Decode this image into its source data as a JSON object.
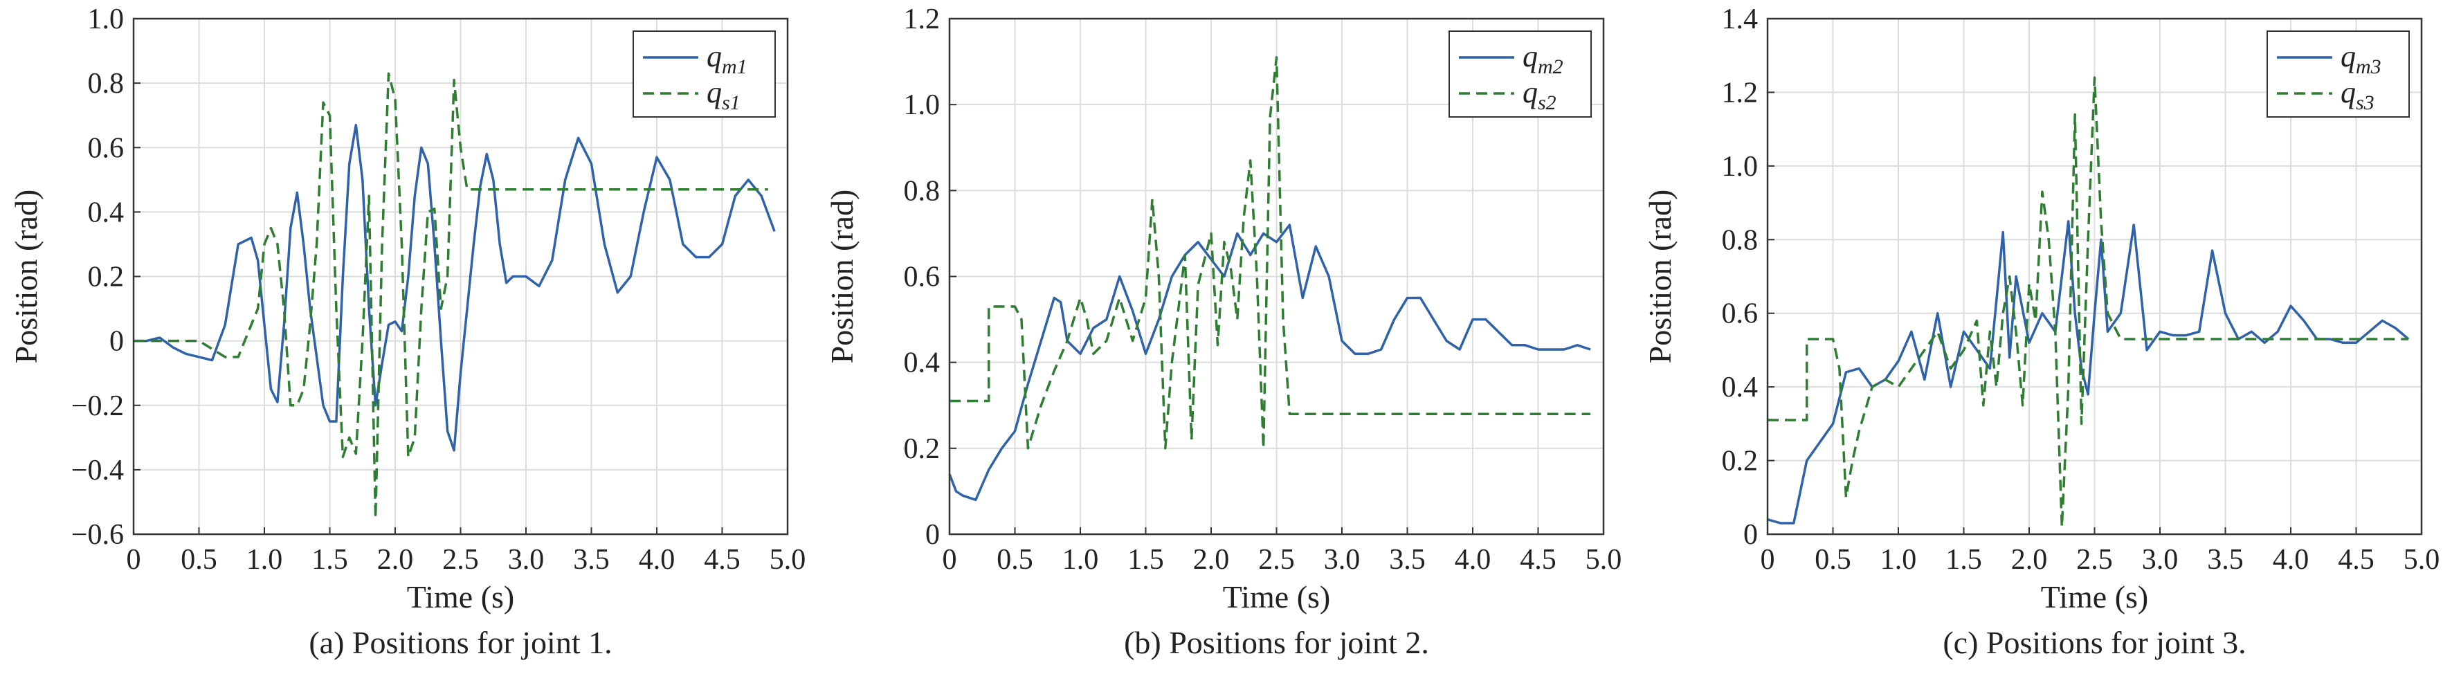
{
  "colors": {
    "master": "#2f62a8",
    "slave": "#2e7d32",
    "grid": "#dcdcdc",
    "axis": "#333333"
  },
  "chart_data": [
    {
      "type": "line",
      "caption": "(a) Positions for joint 1.",
      "xlabel": "Time (s)",
      "ylabel": "Position (rad)",
      "xlim": [
        0,
        5.0
      ],
      "ylim": [
        -0.6,
        1.0
      ],
      "xticks": [
        "0",
        "0.5",
        "1.0",
        "1.5",
        "2.0",
        "2.5",
        "3.0",
        "3.5",
        "4.0",
        "4.5",
        "5.0"
      ],
      "yticks": [
        "−0.6",
        "−0.4",
        "−0.2",
        "0",
        "0.2",
        "0.4",
        "0.6",
        "0.8",
        "1.0"
      ],
      "grid": true,
      "legend_position": "top-right",
      "series": [
        {
          "name": "q",
          "sub": "m1",
          "style": "solid",
          "color": "#2f62a8",
          "x": [
            0,
            0.1,
            0.2,
            0.3,
            0.4,
            0.5,
            0.6,
            0.7,
            0.8,
            0.9,
            0.95,
            1.0,
            1.05,
            1.1,
            1.15,
            1.2,
            1.25,
            1.3,
            1.35,
            1.4,
            1.45,
            1.5,
            1.55,
            1.6,
            1.65,
            1.7,
            1.75,
            1.8,
            1.85,
            1.9,
            1.95,
            2.0,
            2.05,
            2.1,
            2.15,
            2.2,
            2.25,
            2.3,
            2.35,
            2.4,
            2.45,
            2.5,
            2.55,
            2.6,
            2.65,
            2.7,
            2.75,
            2.8,
            2.85,
            2.9,
            3.0,
            3.1,
            3.2,
            3.3,
            3.4,
            3.5,
            3.6,
            3.7,
            3.8,
            3.9,
            4.0,
            4.1,
            4.2,
            4.3,
            4.4,
            4.5,
            4.6,
            4.7,
            4.8,
            4.9
          ],
          "y": [
            0,
            0,
            0.01,
            -0.02,
            -0.04,
            -0.05,
            -0.06,
            0.05,
            0.3,
            0.32,
            0.25,
            0.05,
            -0.15,
            -0.19,
            0.05,
            0.35,
            0.46,
            0.3,
            0.1,
            -0.05,
            -0.2,
            -0.25,
            -0.25,
            0.2,
            0.55,
            0.67,
            0.5,
            0.1,
            -0.2,
            -0.07,
            0.05,
            0.06,
            0.03,
            0.2,
            0.45,
            0.6,
            0.55,
            0.3,
            0.0,
            -0.28,
            -0.34,
            -0.1,
            0.1,
            0.3,
            0.48,
            0.58,
            0.5,
            0.3,
            0.18,
            0.2,
            0.2,
            0.17,
            0.25,
            0.5,
            0.63,
            0.55,
            0.3,
            0.15,
            0.2,
            0.4,
            0.57,
            0.5,
            0.3,
            0.26,
            0.26,
            0.3,
            0.45,
            0.5,
            0.45,
            0.34
          ]
        },
        {
          "name": "q",
          "sub": "s1",
          "style": "dashed",
          "color": "#2e7d32",
          "x": [
            0,
            0.5,
            0.7,
            0.8,
            0.85,
            0.9,
            0.95,
            1.0,
            1.05,
            1.1,
            1.15,
            1.2,
            1.25,
            1.3,
            1.35,
            1.4,
            1.45,
            1.5,
            1.55,
            1.6,
            1.65,
            1.7,
            1.75,
            1.8,
            1.85,
            1.9,
            1.95,
            2.0,
            2.05,
            2.1,
            2.15,
            2.2,
            2.25,
            2.3,
            2.35,
            2.4,
            2.45,
            2.5,
            2.55,
            2.6,
            2.65,
            2.7,
            3.0,
            4.0,
            4.85
          ],
          "y": [
            0,
            0,
            -0.05,
            -0.05,
            0.0,
            0.05,
            0.1,
            0.3,
            0.35,
            0.3,
            0.1,
            -0.2,
            -0.2,
            -0.15,
            0.05,
            0.3,
            0.74,
            0.7,
            0.1,
            -0.36,
            -0.3,
            -0.35,
            0.0,
            0.45,
            -0.55,
            0.3,
            0.83,
            0.75,
            0.3,
            -0.36,
            -0.3,
            0.1,
            0.4,
            0.41,
            0.1,
            0.2,
            0.81,
            0.6,
            0.47,
            0.47,
            0.47,
            0.47,
            0.47,
            0.47,
            0.47
          ]
        }
      ]
    },
    {
      "type": "line",
      "caption": "(b) Positions for joint 2.",
      "xlabel": "Time (s)",
      "ylabel": "Position (rad)",
      "xlim": [
        0,
        5.0
      ],
      "ylim": [
        0,
        1.2
      ],
      "xticks": [
        "0",
        "0.5",
        "1.0",
        "1.5",
        "2.0",
        "2.5",
        "3.0",
        "3.5",
        "4.0",
        "4.5",
        "5.0"
      ],
      "yticks": [
        "0",
        "0.2",
        "0.4",
        "0.6",
        "0.8",
        "1.0",
        "1.2"
      ],
      "grid": true,
      "legend_position": "top-right",
      "series": [
        {
          "name": "q",
          "sub": "m2",
          "style": "solid",
          "color": "#2f62a8",
          "x": [
            0,
            0.05,
            0.1,
            0.2,
            0.3,
            0.4,
            0.5,
            0.6,
            0.7,
            0.8,
            0.85,
            0.9,
            1.0,
            1.1,
            1.2,
            1.3,
            1.4,
            1.5,
            1.6,
            1.7,
            1.8,
            1.9,
            2.0,
            2.1,
            2.2,
            2.3,
            2.4,
            2.5,
            2.6,
            2.7,
            2.8,
            2.9,
            3.0,
            3.1,
            3.2,
            3.3,
            3.4,
            3.5,
            3.6,
            3.7,
            3.8,
            3.9,
            4.0,
            4.1,
            4.2,
            4.3,
            4.4,
            4.5,
            4.6,
            4.7,
            4.8,
            4.9
          ],
          "y": [
            0.14,
            0.1,
            0.09,
            0.08,
            0.15,
            0.2,
            0.24,
            0.35,
            0.45,
            0.55,
            0.54,
            0.45,
            0.42,
            0.48,
            0.5,
            0.6,
            0.52,
            0.42,
            0.5,
            0.6,
            0.65,
            0.68,
            0.64,
            0.6,
            0.7,
            0.65,
            0.7,
            0.68,
            0.72,
            0.55,
            0.67,
            0.6,
            0.45,
            0.42,
            0.42,
            0.43,
            0.5,
            0.55,
            0.55,
            0.5,
            0.45,
            0.43,
            0.5,
            0.5,
            0.47,
            0.44,
            0.44,
            0.43,
            0.43,
            0.43,
            0.44,
            0.43
          ]
        },
        {
          "name": "q",
          "sub": "s2",
          "style": "dashed",
          "color": "#2e7d32",
          "x": [
            0,
            0.3,
            0.3,
            0.5,
            0.55,
            0.6,
            0.65,
            0.7,
            0.8,
            0.9,
            1.0,
            1.05,
            1.1,
            1.2,
            1.3,
            1.4,
            1.5,
            1.55,
            1.6,
            1.65,
            1.7,
            1.8,
            1.85,
            1.9,
            2.0,
            2.05,
            2.1,
            2.15,
            2.2,
            2.25,
            2.3,
            2.35,
            2.4,
            2.45,
            2.5,
            2.55,
            2.6,
            2.65,
            2.7,
            3.0,
            4.0,
            4.9
          ],
          "y": [
            0.31,
            0.31,
            0.53,
            0.53,
            0.5,
            0.2,
            0.25,
            0.3,
            0.38,
            0.45,
            0.55,
            0.5,
            0.42,
            0.45,
            0.55,
            0.45,
            0.55,
            0.78,
            0.6,
            0.2,
            0.4,
            0.65,
            0.22,
            0.58,
            0.7,
            0.44,
            0.68,
            0.62,
            0.5,
            0.74,
            0.87,
            0.6,
            0.2,
            0.97,
            1.11,
            0.5,
            0.28,
            0.28,
            0.28,
            0.28,
            0.28,
            0.28
          ]
        }
      ]
    },
    {
      "type": "line",
      "caption": "(c) Positions for joint 3.",
      "xlabel": "Time (s)",
      "ylabel": "Position (rad)",
      "xlim": [
        0,
        5.0
      ],
      "ylim": [
        0,
        1.4
      ],
      "xticks": [
        "0",
        "0.5",
        "1.0",
        "1.5",
        "2.0",
        "2.5",
        "3.0",
        "3.5",
        "4.0",
        "4.5",
        "5.0"
      ],
      "yticks": [
        "0",
        "0.2",
        "0.4",
        "0.6",
        "0.8",
        "1.0",
        "1.2",
        "1.4"
      ],
      "grid": true,
      "legend_position": "top-right",
      "series": [
        {
          "name": "q",
          "sub": "m3",
          "style": "solid",
          "color": "#2f62a8",
          "x": [
            0,
            0.1,
            0.2,
            0.3,
            0.4,
            0.5,
            0.6,
            0.7,
            0.8,
            0.9,
            1.0,
            1.1,
            1.2,
            1.3,
            1.4,
            1.5,
            1.6,
            1.7,
            1.8,
            1.85,
            1.9,
            2.0,
            2.1,
            2.2,
            2.3,
            2.35,
            2.4,
            2.45,
            2.5,
            2.55,
            2.6,
            2.7,
            2.8,
            2.9,
            3.0,
            3.1,
            3.2,
            3.3,
            3.4,
            3.5,
            3.6,
            3.7,
            3.8,
            3.9,
            4.0,
            4.1,
            4.2,
            4.3,
            4.4,
            4.5,
            4.6,
            4.7,
            4.8,
            4.9
          ],
          "y": [
            0.04,
            0.03,
            0.03,
            0.2,
            0.25,
            0.3,
            0.44,
            0.45,
            0.4,
            0.42,
            0.47,
            0.55,
            0.42,
            0.6,
            0.4,
            0.55,
            0.5,
            0.45,
            0.82,
            0.48,
            0.7,
            0.52,
            0.6,
            0.55,
            0.85,
            0.6,
            0.45,
            0.38,
            0.6,
            0.8,
            0.55,
            0.6,
            0.84,
            0.5,
            0.55,
            0.54,
            0.54,
            0.55,
            0.77,
            0.6,
            0.53,
            0.55,
            0.52,
            0.55,
            0.62,
            0.58,
            0.53,
            0.53,
            0.52,
            0.52,
            0.55,
            0.58,
            0.56,
            0.53
          ]
        },
        {
          "name": "q",
          "sub": "s3",
          "style": "dashed",
          "color": "#2e7d32",
          "x": [
            0,
            0.3,
            0.3,
            0.5,
            0.55,
            0.6,
            0.65,
            0.7,
            0.8,
            0.9,
            1.0,
            1.1,
            1.2,
            1.3,
            1.4,
            1.5,
            1.6,
            1.65,
            1.7,
            1.75,
            1.8,
            1.85,
            1.9,
            1.95,
            2.0,
            2.05,
            2.1,
            2.15,
            2.2,
            2.25,
            2.3,
            2.35,
            2.4,
            2.45,
            2.5,
            2.55,
            2.6,
            2.7,
            3.0,
            4.0,
            4.9
          ],
          "y": [
            0.31,
            0.31,
            0.53,
            0.53,
            0.45,
            0.1,
            0.2,
            0.28,
            0.4,
            0.42,
            0.4,
            0.45,
            0.5,
            0.55,
            0.45,
            0.5,
            0.58,
            0.35,
            0.55,
            0.4,
            0.6,
            0.7,
            0.55,
            0.35,
            0.68,
            0.58,
            0.93,
            0.8,
            0.55,
            0.02,
            0.4,
            1.14,
            0.3,
            0.8,
            1.24,
            0.85,
            0.6,
            0.53,
            0.53,
            0.53,
            0.53
          ]
        }
      ]
    }
  ]
}
